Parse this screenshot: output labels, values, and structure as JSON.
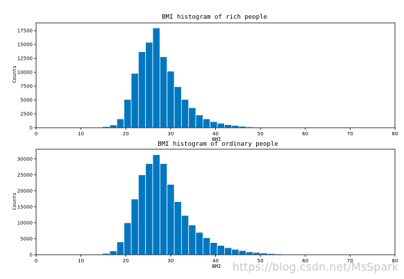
{
  "watermark": "https://blog.csdn.net/MsSpark",
  "chart_data": [
    {
      "type": "bar",
      "title": "BMI histogram of rich people",
      "xlabel": "BMI",
      "ylabel": "Counts",
      "xlim": [
        0,
        80
      ],
      "ylim": [
        0,
        18900
      ],
      "xticks": [
        0,
        10,
        20,
        30,
        40,
        50,
        60,
        70,
        80
      ],
      "yticks": [
        0,
        2500,
        5000,
        7500,
        10000,
        12500,
        15000,
        17500
      ],
      "bar_color": "#0077c0",
      "bin_width": 1.6,
      "bins": [
        {
          "x": 11.6,
          "value": 20
        },
        {
          "x": 13.2,
          "value": 50
        },
        {
          "x": 14.8,
          "value": 200
        },
        {
          "x": 16.4,
          "value": 500
        },
        {
          "x": 18.0,
          "value": 1600
        },
        {
          "x": 19.6,
          "value": 5100
        },
        {
          "x": 21.2,
          "value": 9800
        },
        {
          "x": 22.8,
          "value": 13700
        },
        {
          "x": 24.4,
          "value": 15400
        },
        {
          "x": 26.0,
          "value": 18000
        },
        {
          "x": 27.6,
          "value": 12800
        },
        {
          "x": 29.2,
          "value": 10200
        },
        {
          "x": 30.8,
          "value": 7400
        },
        {
          "x": 32.4,
          "value": 5100
        },
        {
          "x": 34.0,
          "value": 3600
        },
        {
          "x": 35.6,
          "value": 2300
        },
        {
          "x": 37.2,
          "value": 1600
        },
        {
          "x": 38.8,
          "value": 1100
        },
        {
          "x": 40.4,
          "value": 800
        },
        {
          "x": 42.0,
          "value": 550
        },
        {
          "x": 43.6,
          "value": 400
        },
        {
          "x": 45.2,
          "value": 250
        },
        {
          "x": 46.8,
          "value": 150
        },
        {
          "x": 48.4,
          "value": 90
        },
        {
          "x": 50.0,
          "value": 60
        },
        {
          "x": 51.6,
          "value": 30
        }
      ]
    },
    {
      "type": "bar",
      "title": "BMI histogram of ordinary people",
      "xlabel": "BMI",
      "ylabel": "Counts",
      "xlim": [
        0,
        80
      ],
      "ylim": [
        0,
        33000
      ],
      "xticks": [
        0,
        10,
        20,
        30,
        40,
        50,
        60,
        70,
        80
      ],
      "yticks": [
        0,
        5000,
        10000,
        15000,
        20000,
        25000,
        30000
      ],
      "bar_color": "#0077c0",
      "bin_width": 1.6,
      "bins": [
        {
          "x": 8.4,
          "value": 20
        },
        {
          "x": 10.0,
          "value": 40
        },
        {
          "x": 11.6,
          "value": 80
        },
        {
          "x": 13.2,
          "value": 200
        },
        {
          "x": 14.8,
          "value": 400
        },
        {
          "x": 16.4,
          "value": 1200
        },
        {
          "x": 18.0,
          "value": 4000
        },
        {
          "x": 19.6,
          "value": 10000
        },
        {
          "x": 21.2,
          "value": 17400
        },
        {
          "x": 22.8,
          "value": 25000
        },
        {
          "x": 24.4,
          "value": 28500
        },
        {
          "x": 26.0,
          "value": 31300
        },
        {
          "x": 27.6,
          "value": 28500
        },
        {
          "x": 29.2,
          "value": 22000
        },
        {
          "x": 30.8,
          "value": 16600
        },
        {
          "x": 32.4,
          "value": 12300
        },
        {
          "x": 34.0,
          "value": 9300
        },
        {
          "x": 35.6,
          "value": 7000
        },
        {
          "x": 37.2,
          "value": 5300
        },
        {
          "x": 38.8,
          "value": 3800
        },
        {
          "x": 40.4,
          "value": 2900
        },
        {
          "x": 42.0,
          "value": 2200
        },
        {
          "x": 43.6,
          "value": 1700
        },
        {
          "x": 45.2,
          "value": 1300
        },
        {
          "x": 46.8,
          "value": 900
        },
        {
          "x": 48.4,
          "value": 700
        },
        {
          "x": 50.0,
          "value": 500
        },
        {
          "x": 51.6,
          "value": 350
        },
        {
          "x": 53.2,
          "value": 250
        },
        {
          "x": 54.8,
          "value": 180
        },
        {
          "x": 56.4,
          "value": 120
        },
        {
          "x": 58.0,
          "value": 80
        },
        {
          "x": 59.6,
          "value": 50
        },
        {
          "x": 61.2,
          "value": 30
        }
      ]
    }
  ]
}
